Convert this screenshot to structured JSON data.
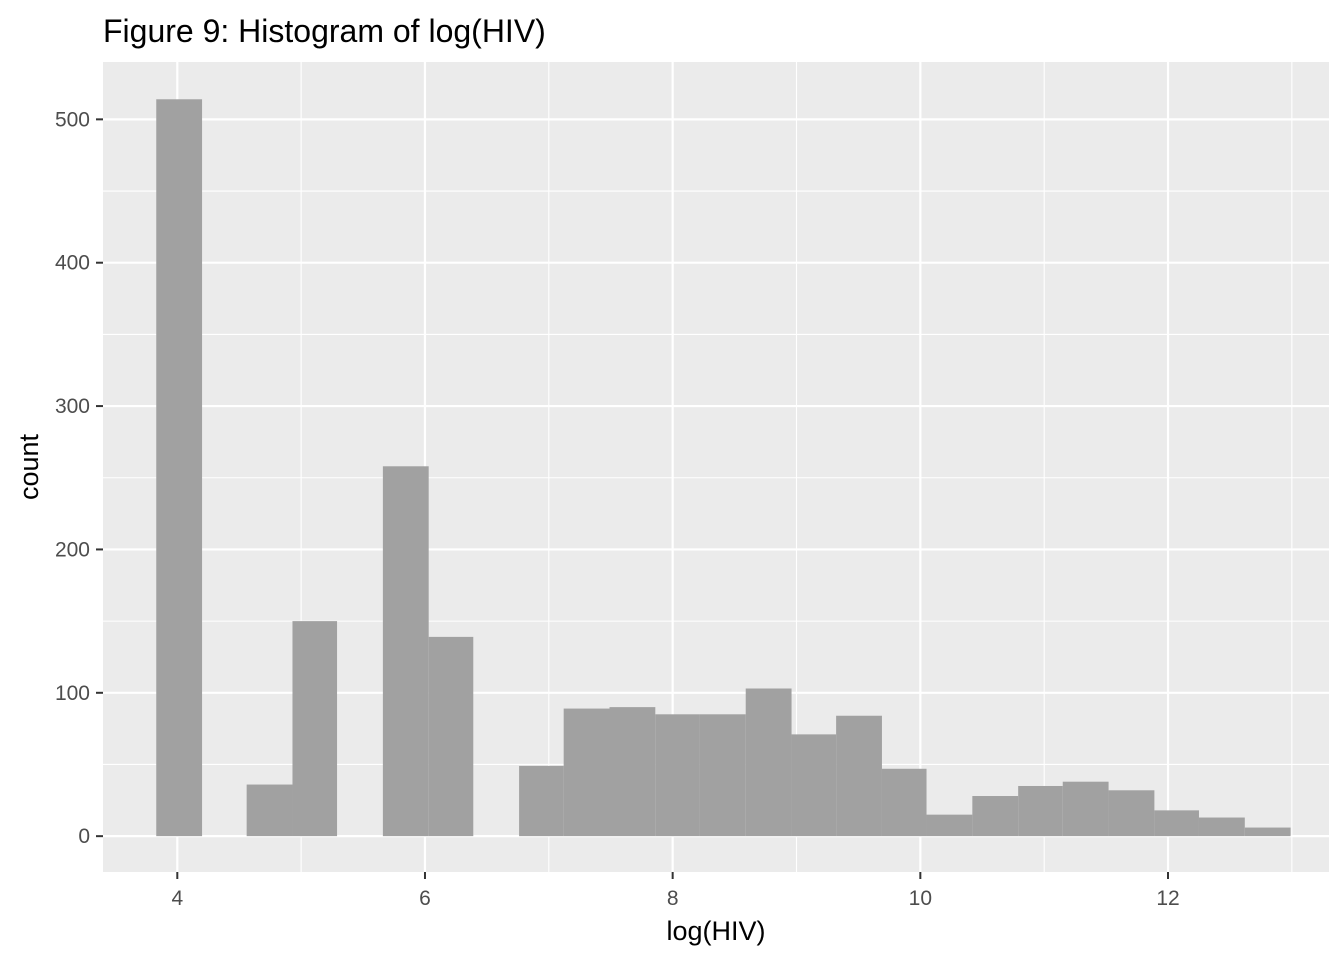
{
  "chart_data": {
    "type": "bar",
    "subtype": "histogram",
    "title": "Figure 9: Histogram of log(HIV)",
    "xlabel": "log(HIV)",
    "ylabel": "count",
    "xlim": [
      3.4,
      13.3
    ],
    "ylim": [
      -25,
      540
    ],
    "x_ticks": [
      4,
      6,
      8,
      10,
      12
    ],
    "x_tick_labels": [
      "4",
      "6",
      "8",
      "10",
      "12"
    ],
    "x_minor_ticks": [
      5,
      7,
      9,
      11,
      13
    ],
    "y_ticks": [
      0,
      100,
      200,
      300,
      400,
      500
    ],
    "y_tick_labels": [
      "0",
      "100",
      "200",
      "300",
      "400",
      "500"
    ],
    "y_minor_ticks": [
      50,
      150,
      250,
      350,
      450
    ],
    "grid": true,
    "legend": "none",
    "colors": {
      "panel_background": "#ebebeb",
      "grid_line": "#ffffff",
      "bar_fill": "#a1a1a1",
      "tick_label": "#4d4d4d",
      "tick_mark": "#333333"
    },
    "bin_width": 0.366,
    "bins": [
      {
        "x_start": 3.83,
        "x_end": 4.2,
        "count": 514
      },
      {
        "x_start": 4.56,
        "x_end": 4.93,
        "count": 36
      },
      {
        "x_start": 4.93,
        "x_end": 5.29,
        "count": 150
      },
      {
        "x_start": 5.66,
        "x_end": 6.03,
        "count": 258
      },
      {
        "x_start": 6.03,
        "x_end": 6.39,
        "count": 139
      },
      {
        "x_start": 6.76,
        "x_end": 7.12,
        "count": 49
      },
      {
        "x_start": 7.12,
        "x_end": 7.49,
        "count": 89
      },
      {
        "x_start": 7.49,
        "x_end": 7.86,
        "count": 90
      },
      {
        "x_start": 7.86,
        "x_end": 8.22,
        "count": 85
      },
      {
        "x_start": 8.22,
        "x_end": 8.59,
        "count": 85
      },
      {
        "x_start": 8.59,
        "x_end": 8.96,
        "count": 103
      },
      {
        "x_start": 8.96,
        "x_end": 9.32,
        "count": 71
      },
      {
        "x_start": 9.32,
        "x_end": 9.69,
        "count": 84
      },
      {
        "x_start": 9.69,
        "x_end": 10.05,
        "count": 47
      },
      {
        "x_start": 10.05,
        "x_end": 10.42,
        "count": 15
      },
      {
        "x_start": 10.42,
        "x_end": 10.79,
        "count": 28
      },
      {
        "x_start": 10.79,
        "x_end": 11.15,
        "count": 35
      },
      {
        "x_start": 11.15,
        "x_end": 11.52,
        "count": 38
      },
      {
        "x_start": 11.52,
        "x_end": 11.89,
        "count": 32
      },
      {
        "x_start": 11.89,
        "x_end": 12.25,
        "count": 18
      },
      {
        "x_start": 12.25,
        "x_end": 12.62,
        "count": 13
      },
      {
        "x_start": 12.62,
        "x_end": 12.99,
        "count": 6
      }
    ]
  }
}
